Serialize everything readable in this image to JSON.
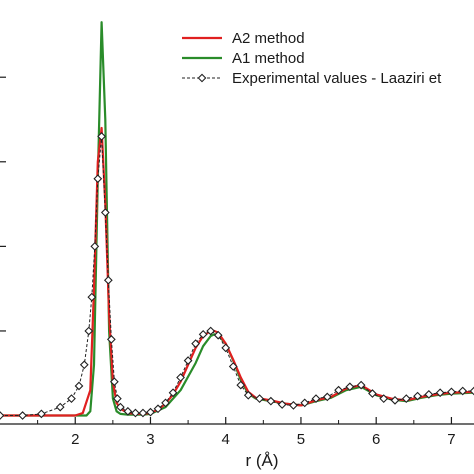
{
  "chart_data": {
    "type": "line",
    "title": "",
    "xlabel": "r (Å)",
    "ylabel": "",
    "xlim": [
      1.0,
      7.3
    ],
    "ylim": [
      -0.1,
      4.7
    ],
    "x_ticks": [
      2,
      3,
      4,
      5,
      6,
      7
    ],
    "x_tick_labels": [
      "2",
      "3",
      "4",
      "5",
      "6",
      "7"
    ],
    "grid": false,
    "legend_position": "top-right",
    "series": [
      {
        "name": "A2 method",
        "color": "#e02020",
        "style": "solid",
        "x": [
          1.0,
          2.0,
          2.1,
          2.2,
          2.25,
          2.3,
          2.35,
          2.4,
          2.45,
          2.5,
          2.55,
          2.6,
          2.7,
          2.8,
          2.9,
          3.0,
          3.1,
          3.2,
          3.3,
          3.4,
          3.5,
          3.6,
          3.7,
          3.8,
          3.85,
          3.9,
          4.0,
          4.1,
          4.2,
          4.3,
          4.4,
          4.6,
          4.8,
          5.0,
          5.2,
          5.4,
          5.6,
          5.8,
          6.0,
          6.2,
          6.4,
          6.6,
          6.8,
          7.0,
          7.3
        ],
        "y": [
          0.0,
          0.0,
          0.03,
          0.3,
          1.5,
          3.0,
          3.4,
          2.5,
          1.2,
          0.4,
          0.15,
          0.08,
          0.03,
          0.02,
          0.02,
          0.03,
          0.07,
          0.14,
          0.25,
          0.4,
          0.6,
          0.8,
          0.94,
          1.0,
          1.0,
          0.98,
          0.85,
          0.66,
          0.45,
          0.28,
          0.21,
          0.18,
          0.14,
          0.12,
          0.18,
          0.22,
          0.32,
          0.36,
          0.25,
          0.2,
          0.18,
          0.22,
          0.25,
          0.27,
          0.28
        ]
      },
      {
        "name": "A1 method",
        "color": "#2a8c2a",
        "style": "solid",
        "x": [
          1.0,
          2.0,
          2.15,
          2.2,
          2.25,
          2.3,
          2.35,
          2.4,
          2.45,
          2.5,
          2.55,
          2.6,
          2.7,
          2.8,
          2.9,
          3.0,
          3.2,
          3.4,
          3.6,
          3.7,
          3.8,
          3.85,
          3.9,
          4.0,
          4.1,
          4.2,
          4.3,
          4.4,
          4.6,
          4.8,
          5.0,
          5.2,
          5.4,
          5.6,
          5.8,
          6.0,
          6.2,
          6.4,
          6.6,
          6.8,
          7.0,
          7.3
        ],
        "y": [
          0.0,
          0.0,
          0.0,
          0.05,
          0.6,
          2.8,
          4.65,
          3.5,
          1.0,
          0.2,
          0.05,
          0.02,
          0.01,
          0.01,
          0.01,
          0.02,
          0.1,
          0.3,
          0.62,
          0.82,
          0.94,
          0.96,
          0.95,
          0.85,
          0.65,
          0.42,
          0.26,
          0.2,
          0.17,
          0.14,
          0.12,
          0.17,
          0.21,
          0.3,
          0.34,
          0.24,
          0.19,
          0.17,
          0.21,
          0.24,
          0.26,
          0.27
        ]
      },
      {
        "name": "Experimental values - Laaziri et",
        "color": "#222222",
        "style": "dashed",
        "marker": "diamond",
        "x": [
          1.0,
          1.3,
          1.55,
          1.8,
          1.95,
          2.05,
          2.12,
          2.18,
          2.22,
          2.26,
          2.3,
          2.35,
          2.4,
          2.44,
          2.48,
          2.52,
          2.56,
          2.6,
          2.7,
          2.8,
          2.9,
          3.0,
          3.1,
          3.2,
          3.3,
          3.4,
          3.5,
          3.6,
          3.7,
          3.8,
          3.9,
          4.0,
          4.1,
          4.2,
          4.3,
          4.45,
          4.6,
          4.75,
          4.9,
          5.05,
          5.2,
          5.35,
          5.5,
          5.65,
          5.8,
          5.95,
          6.1,
          6.25,
          6.4,
          6.55,
          6.7,
          6.85,
          7.0,
          7.15,
          7.3
        ],
        "y": [
          0.0,
          0.0,
          0.02,
          0.1,
          0.2,
          0.35,
          0.6,
          1.0,
          1.4,
          2.0,
          2.8,
          3.3,
          2.4,
          1.6,
          0.9,
          0.4,
          0.2,
          0.1,
          0.05,
          0.03,
          0.03,
          0.04,
          0.08,
          0.15,
          0.27,
          0.45,
          0.65,
          0.85,
          0.96,
          1.0,
          0.95,
          0.8,
          0.58,
          0.36,
          0.24,
          0.2,
          0.17,
          0.13,
          0.12,
          0.15,
          0.2,
          0.22,
          0.3,
          0.34,
          0.36,
          0.26,
          0.2,
          0.18,
          0.2,
          0.23,
          0.25,
          0.27,
          0.28,
          0.29,
          0.29
        ]
      }
    ]
  }
}
